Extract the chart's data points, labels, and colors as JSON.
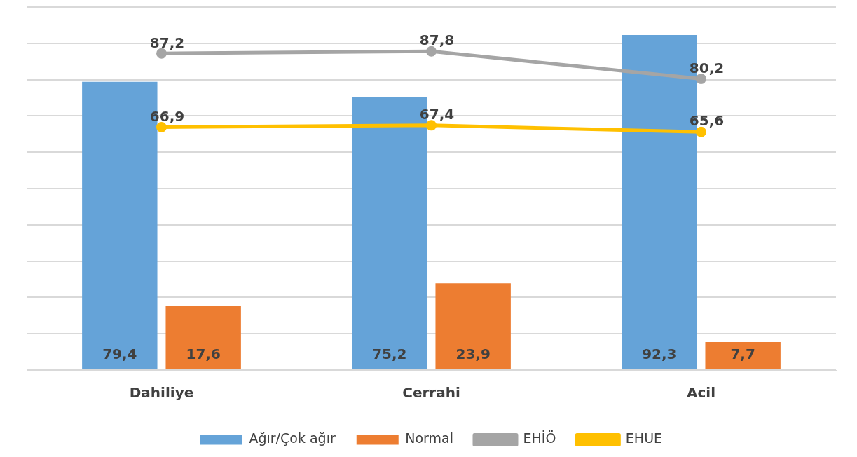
{
  "chart_data": {
    "type": "bar",
    "categories": [
      "Dahiliye",
      "Cerrahi",
      "Acil"
    ],
    "series": [
      {
        "name": "Ağır/Çok ağır",
        "color": "#65a3d8",
        "values": [
          79.4,
          75.2,
          92.3
        ],
        "value_labels": [
          "79,4",
          "75,2",
          "92,3"
        ]
      },
      {
        "name": "Normal",
        "color": "#ed7d31",
        "values": [
          17.6,
          23.9,
          7.7
        ],
        "value_labels": [
          "17,6",
          "23,9",
          "7,7"
        ]
      },
      {
        "name": "EHİÖ",
        "type": "line",
        "color": "#a5a5a5",
        "values": [
          87.2,
          87.8,
          80.2
        ],
        "value_labels": [
          "87,2",
          "87,8",
          "80,2"
        ]
      },
      {
        "name": "EHUE",
        "type": "line",
        "color": "#ffc000",
        "values": [
          66.9,
          67.4,
          65.6
        ],
        "value_labels": [
          "66,9",
          "67,4",
          "65,6"
        ]
      }
    ],
    "tick_labels": "x",
    "grid": "y",
    "legend": "bottom",
    "marker": "circle",
    "line_style": "solid"
  }
}
